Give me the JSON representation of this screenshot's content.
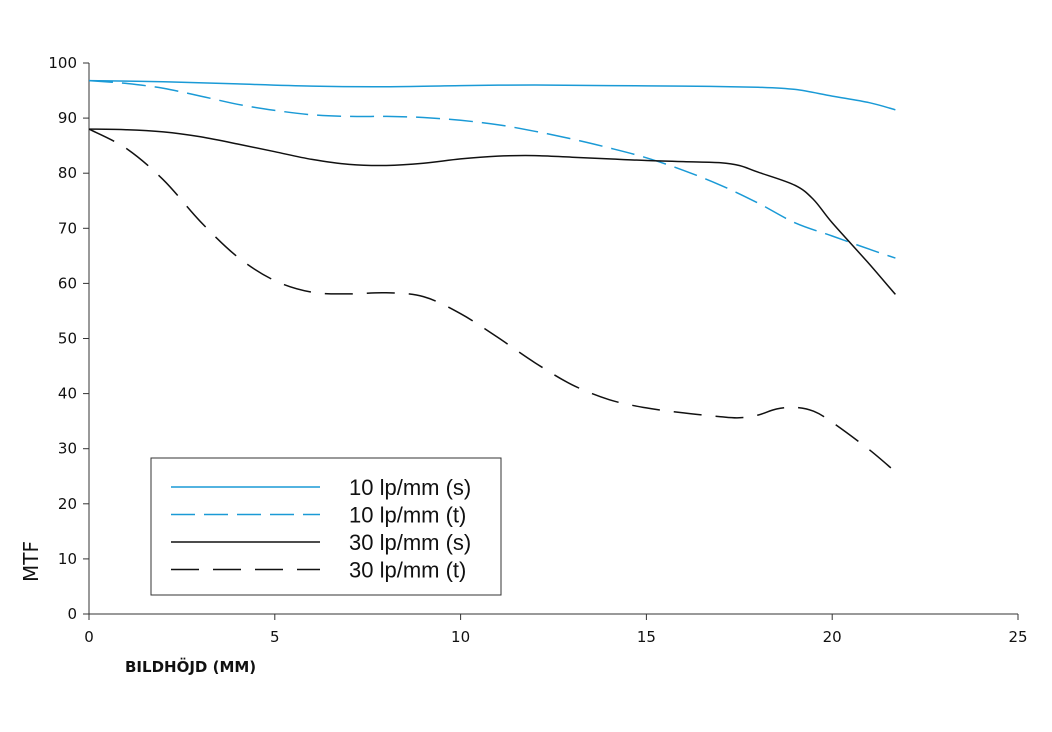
{
  "chart_data": {
    "type": "line",
    "xlabel": "BILDHÖJD (MM)",
    "ylabel": "MTF",
    "xlim": [
      0,
      25
    ],
    "ylim": [
      0,
      100
    ],
    "xticks": [
      0,
      5,
      10,
      15,
      20,
      25
    ],
    "yticks": [
      0,
      10,
      20,
      30,
      40,
      50,
      60,
      70,
      80,
      90,
      100
    ],
    "grid": false,
    "legend_position": "bottom-left",
    "series": [
      {
        "name": "10 lp/mm (s)",
        "color": "#1a9ad6",
        "dash": "solid",
        "x": [
          0,
          2,
          4,
          6,
          8,
          10,
          12,
          14,
          16,
          18,
          19,
          20,
          21,
          21.7
        ],
        "values": [
          96.8,
          96.6,
          96.2,
          95.8,
          95.7,
          95.9,
          96,
          95.9,
          95.8,
          95.6,
          95.2,
          94,
          92.8,
          91.5
        ]
      },
      {
        "name": "10 lp/mm (t)",
        "color": "#1a9ad6",
        "dash": "dashed",
        "x": [
          0,
          1,
          2,
          3,
          4,
          5,
          6,
          7,
          8,
          9,
          10,
          11,
          12,
          13,
          14,
          15,
          16,
          17,
          18,
          19,
          20,
          21,
          21.7
        ],
        "values": [
          96.8,
          96.3,
          95.4,
          94,
          92.5,
          91.4,
          90.6,
          90.3,
          90.3,
          90.1,
          89.6,
          88.8,
          87.6,
          86.2,
          84.6,
          82.8,
          80.5,
          77.8,
          74.6,
          71,
          68.6,
          66.2,
          64.6
        ]
      },
      {
        "name": "30 lp/mm (s)",
        "color": "#111111",
        "dash": "solid",
        "x": [
          0,
          1,
          2,
          3,
          4,
          5,
          6,
          7,
          8,
          9,
          10,
          11,
          12,
          13,
          14,
          15,
          16,
          17,
          17.5,
          18,
          19,
          19.5,
          20,
          21,
          21.7
        ],
        "values": [
          88,
          87.9,
          87.5,
          86.6,
          85.3,
          83.9,
          82.5,
          81.6,
          81.4,
          81.8,
          82.6,
          83.1,
          83.2,
          82.9,
          82.6,
          82.3,
          82.1,
          81.9,
          81.4,
          80.2,
          77.8,
          75.2,
          71,
          63.5,
          58
        ]
      },
      {
        "name": "30 lp/mm (t)",
        "color": "#111111",
        "dash": "longdash",
        "x": [
          0,
          1,
          2,
          3,
          4,
          5,
          6,
          7,
          8,
          9,
          10,
          11,
          12,
          13,
          14,
          15,
          16,
          17,
          17.5,
          18,
          18.5,
          19,
          19.5,
          20,
          21,
          21.7
        ],
        "values": [
          88,
          84.5,
          78.8,
          71.2,
          64.8,
          60.5,
          58.4,
          58.1,
          58.3,
          57.6,
          54.5,
          50.2,
          45.6,
          41.6,
          38.9,
          37.4,
          36.5,
          35.8,
          35.6,
          36.1,
          37.2,
          37.5,
          36.8,
          34.8,
          29.8,
          25.8
        ]
      }
    ]
  }
}
